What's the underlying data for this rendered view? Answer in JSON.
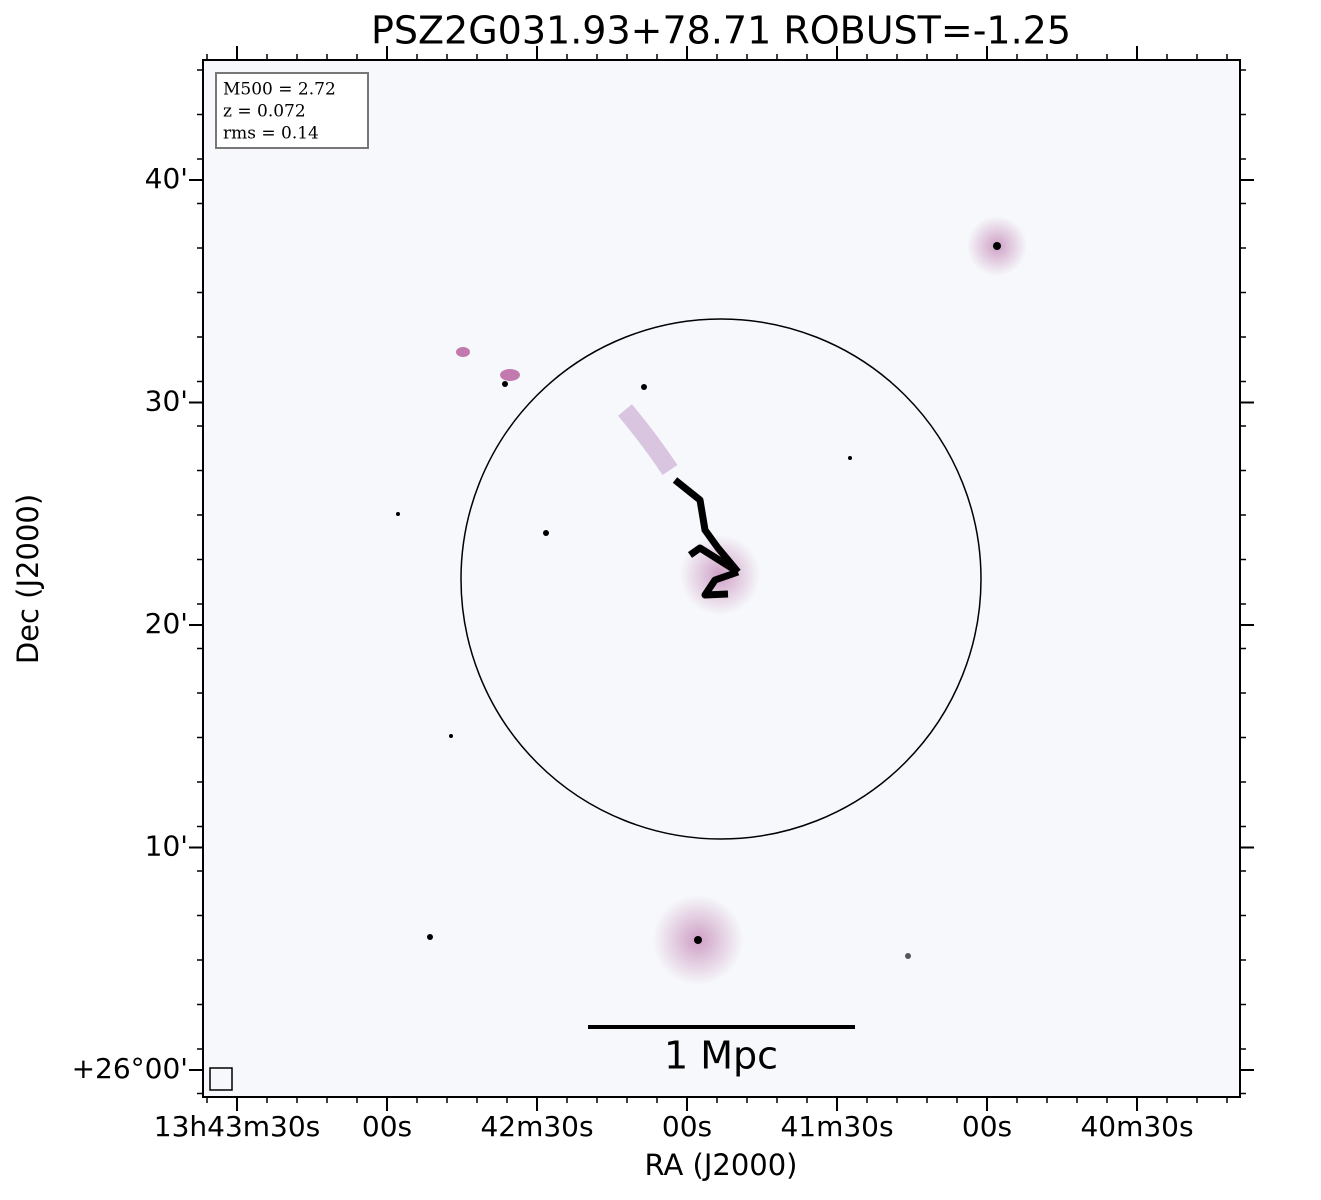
{
  "title": "PSZ2G031.93+78.71 ROBUST=-1.25",
  "x_axis": {
    "label": "RA (J2000)",
    "tick_labels": [
      "13h43m30s",
      "00s",
      "42m30s",
      "00s",
      "41m30s",
      "00s",
      "40m30s"
    ]
  },
  "y_axis": {
    "label": "Dec (J2000)",
    "tick_labels": [
      "40'",
      "30'",
      "20'",
      "10'",
      "+26°00'"
    ]
  },
  "info_box": [
    "M500 = 2.72",
    "z = 0.072",
    "rms = 0.14"
  ],
  "scale_bar": "1 Mpc"
}
